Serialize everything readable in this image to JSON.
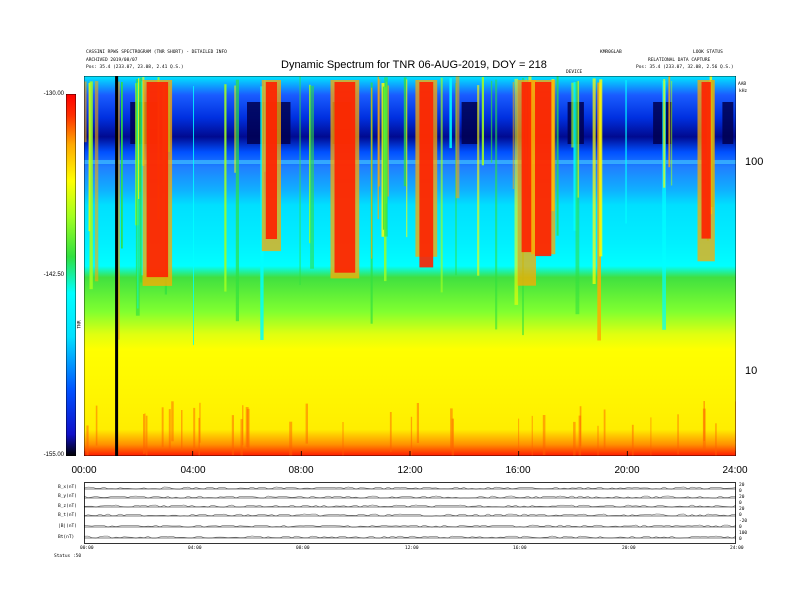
{
  "header": {
    "left_lines": [
      "CASSINI RPWS SPECTROGRAM (TNR SHORT) - DETAILED INFO",
      "ARCHIVED 2019/08/07",
      "Pos:   35.4 (233.07, 23.08, 2.41 Q.S.)"
    ],
    "right_lines": [
      "KMR0GLAB",
      "LOOK STATUS",
      "RELATIONAL DATA CAPTURE",
      "Pos:   35.4 (233.07, 32.08, 2.56 Q.S.)"
    ],
    "right_code": "AAB",
    "dev_label": "DEVICE"
  },
  "chart_data": {
    "type": "heatmap",
    "title": "Dynamic Spectrum for TNR 06-AUG-2019, DOY = 218",
    "x_ticks": [
      "00:00",
      "04:00",
      "08:00",
      "12:00",
      "16:00",
      "20:00",
      "24:00"
    ],
    "x_range_hours": [
      0,
      24
    ],
    "colorbar": {
      "ticks": [
        "-130.00",
        "-142.50",
        "-155.00"
      ],
      "range": [
        -155.0,
        -130.0
      ],
      "label": "TNR",
      "colors": [
        "#000000",
        "#1010c8",
        "#0050ff",
        "#00e0ff",
        "#00ffff",
        "#30e040",
        "#a0ff20",
        "#ffff00",
        "#ffaa00",
        "#ff3000",
        "#ff0000"
      ]
    },
    "y_right_ticks": [
      "100",
      "10"
    ],
    "y_right_top_label": "kHz",
    "y_scale": "log",
    "bursts_hours": [
      2.7,
      6.9,
      9.6,
      12.6,
      16.3,
      16.9,
      22.9
    ],
    "vertical_line_hour": 1.2
  },
  "panels": {
    "labels": [
      "B_x(nT)",
      "B_y(nT)",
      "B_z(nT)",
      "B_t(nT)",
      "|B|(nT)",
      "Bt(nT)"
    ],
    "right_values": [
      "20",
      "0",
      "20",
      "0",
      "20",
      "0",
      "-20",
      "0",
      "100",
      "0"
    ],
    "x_ticks": [
      "00:00",
      "04:00",
      "08:00",
      "12:00",
      "16:00",
      "20:00",
      "24:00"
    ],
    "footer_label": "Status   :50"
  }
}
